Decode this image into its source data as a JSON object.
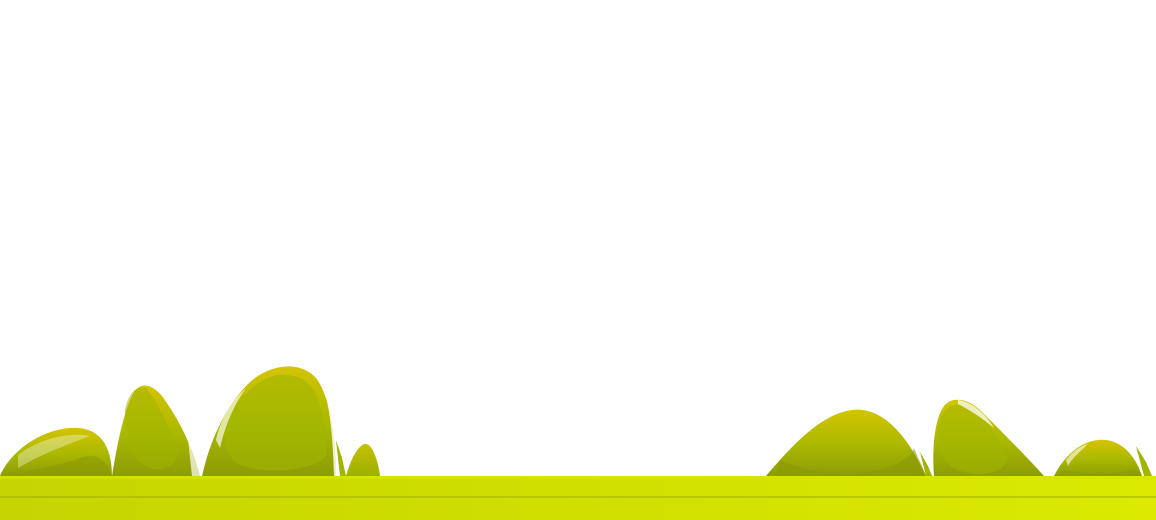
{
  "scene": {
    "background_color": "#ffffff",
    "ground_color_left": "#c8d800",
    "ground_color_right": "#d8e800",
    "ground_line_color": "#a9b800",
    "bush_color_top": "#d4c200",
    "bush_color_mid": "#a8b800",
    "bush_color_base": "#8a9a00",
    "bush_shadow_color": "#7e8c10",
    "bush_highlight_color": "#ffffff"
  }
}
